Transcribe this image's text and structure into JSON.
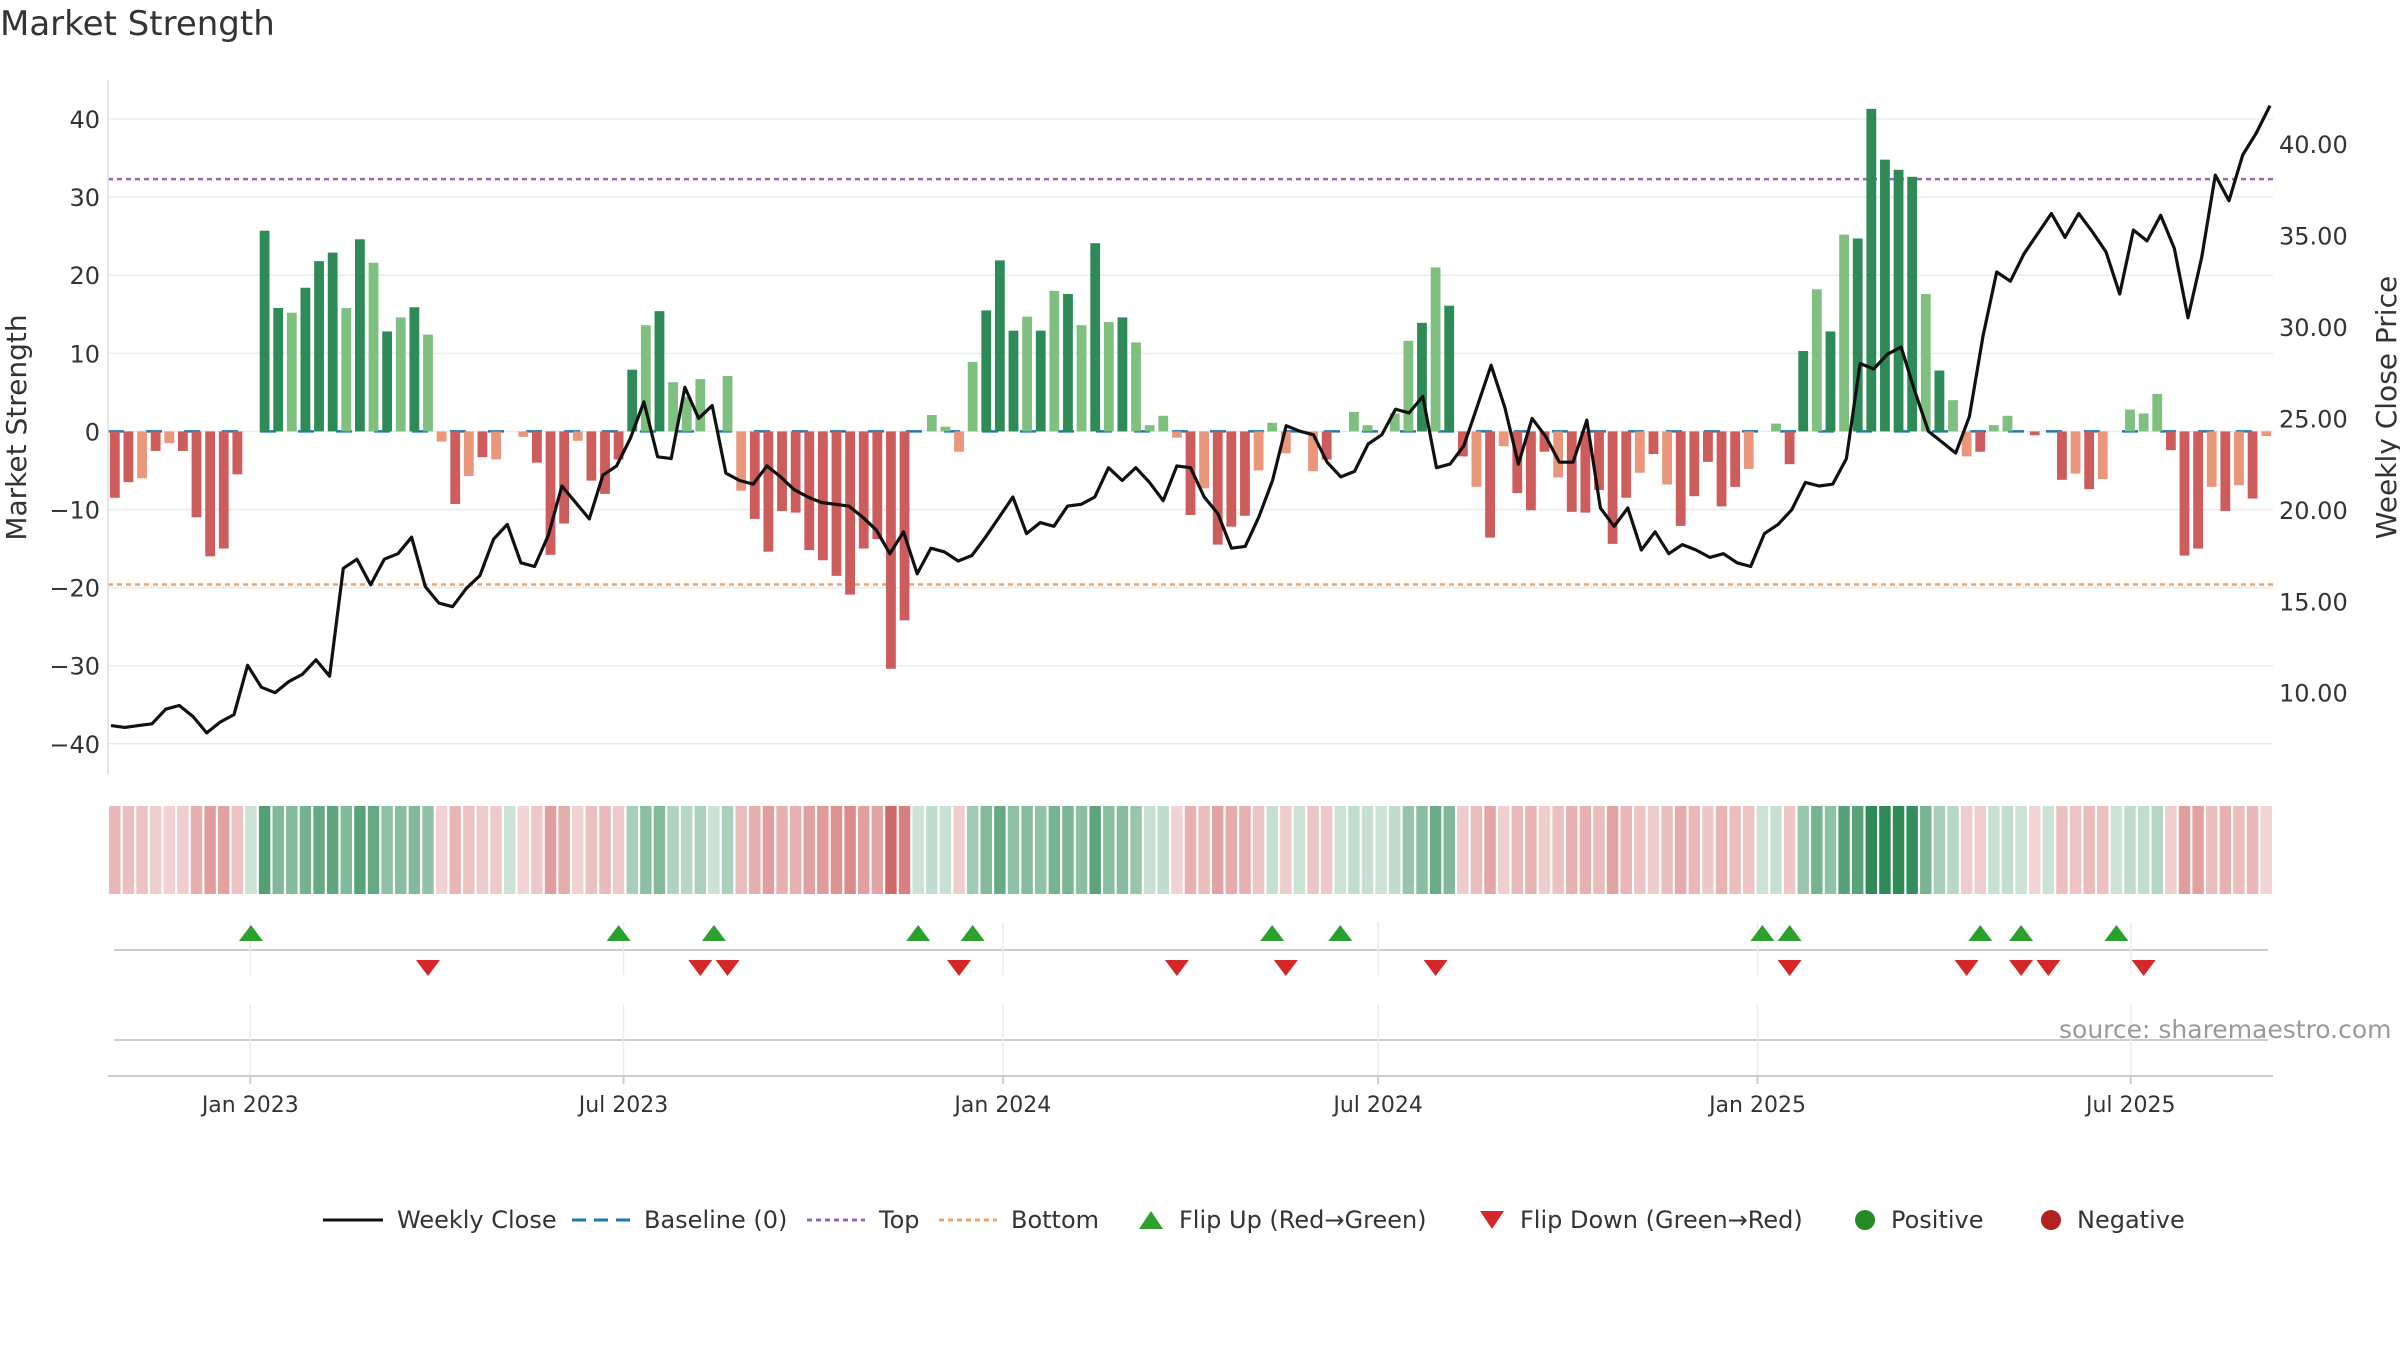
{
  "title": "Market Strength",
  "source": "source: sharemaestro.com",
  "colors": {
    "strong_green": "#2e8b57",
    "light_green": "#7fbf7f",
    "strong_red": "#cd5c5c",
    "light_red": "#e9967a",
    "line": "#111111",
    "top": "#9467bd",
    "bottom": "#f4a261",
    "baseline": "#1f77b4",
    "flip_up": "#2ca02c",
    "flip_down": "#d62728"
  },
  "legend": [
    {
      "key": "weekly_close",
      "label": "Weekly Close"
    },
    {
      "key": "baseline",
      "label": "Baseline (0)"
    },
    {
      "key": "top",
      "label": "Top"
    },
    {
      "key": "bottom",
      "label": "Bottom"
    },
    {
      "key": "flip_up",
      "label": "Flip Up (Red→Green)"
    },
    {
      "key": "flip_down",
      "label": "Flip Down (Green→Red)"
    },
    {
      "key": "positive",
      "label": "Positive"
    },
    {
      "key": "negative",
      "label": "Negative"
    }
  ],
  "chart_data": {
    "type": "bar",
    "title": "Market Strength",
    "ylabel": "Market Strength",
    "ylabel_right": "Weekly Close Price",
    "ylim": [
      -44,
      45
    ],
    "y_ticks": [
      40,
      30,
      20,
      10,
      0,
      -10,
      -20,
      -30,
      -40
    ],
    "y_tick_labels": [
      "40",
      "30",
      "20",
      "10",
      "0",
      "−10",
      "−20",
      "−30",
      "−40"
    ],
    "ylim_right": [
      5.5,
      43.5
    ],
    "y2_ticks": [
      40,
      35,
      30,
      25,
      20,
      15,
      10
    ],
    "y2_tick_labels": [
      "40.00",
      "35.00",
      "30.00",
      "25.00",
      "20.00",
      "15.00",
      "10.00"
    ],
    "top_threshold": 32.3,
    "bottom_threshold": -19.6,
    "x_date_range": [
      "2022-10-24",
      "2025-09-08"
    ],
    "x_ticks": [
      "2023-01-01",
      "2023-07-01",
      "2024-01-01",
      "2024-07-01",
      "2025-01-01",
      "2025-07-01"
    ],
    "x_tick_labels": [
      "Jan 2023",
      "Jul 2023",
      "Jan 2024",
      "Jul 2024",
      "Jan 2025",
      "Jul 2025"
    ],
    "strength_values": [
      -8.5,
      -6.5,
      -6,
      -2.5,
      -1.5,
      -2.5,
      -11,
      -16,
      -15,
      -5.5,
      0,
      25.7,
      15.8,
      15.2,
      18.4,
      21.8,
      22.9,
      15.8,
      24.6,
      21.6,
      12.8,
      14.6,
      15.9,
      12.4,
      -1.3,
      -9.3,
      -5.7,
      -3.3,
      -3.6,
      0,
      -0.7,
      -4,
      -15.8,
      -11.8,
      -1.2,
      -6.3,
      -8,
      -3.6,
      7.9,
      13.6,
      15.4,
      6.3,
      4.4,
      6.7,
      0,
      7.1,
      -7.6,
      -11.2,
      -15.4,
      -10.2,
      -10.4,
      -15.2,
      -16.5,
      -18.5,
      -20.9,
      -15,
      -13.8,
      -30.4,
      -24.2,
      0,
      2.1,
      0.6,
      -2.6,
      8.9,
      15.5,
      21.9,
      12.9,
      14.7,
      12.9,
      18,
      17.6,
      13.6,
      24.1,
      14,
      14.6,
      11.4,
      0.8,
      2,
      -0.8,
      -10.7,
      -7.3,
      -14.5,
      -12.2,
      -10.8,
      -5,
      1.1,
      -2.8,
      0,
      -5.1,
      -3.6,
      0,
      2.5,
      0.8,
      0,
      2.3,
      11.6,
      13.9,
      21,
      16.1,
      -3.2,
      -7.1,
      -13.6,
      -1.9,
      -7.9,
      -10.1,
      -2.6,
      -5.9,
      -10.3,
      -10.4,
      -7.5,
      -14.4,
      -8.5,
      -5.3,
      -2.9,
      -6.8,
      -12.1,
      -8.3,
      -3.9,
      -9.6,
      -7.1,
      -4.8,
      0,
      1,
      -4.2,
      10.3,
      18.2,
      12.8,
      25.2,
      24.7,
      41.3,
      34.8,
      33.5,
      32.6,
      17.6,
      7.8,
      4,
      -3.2,
      -2.6,
      0.8,
      2,
      0,
      -0.5,
      0,
      -6.2,
      -5.4,
      -7.4,
      -6.1,
      0,
      2.8,
      2.3,
      4.8,
      -2.4,
      -15.9,
      -15,
      -7.1,
      -10.2,
      -6.9,
      -8.6,
      -0.6
    ],
    "close_values": [
      8.2,
      8.1,
      8.2,
      8.3,
      9.1,
      9.3,
      8.7,
      7.8,
      8.4,
      8.8,
      11.5,
      10.3,
      10.0,
      10.6,
      11.0,
      11.8,
      10.9,
      16.8,
      17.3,
      15.9,
      17.3,
      17.6,
      18.5,
      15.8,
      14.9,
      14.7,
      15.7,
      16.4,
      18.4,
      19.2,
      17.1,
      16.9,
      18.6,
      21.3,
      20.4,
      19.5,
      21.9,
      22.4,
      23.9,
      25.9,
      22.9,
      22.8,
      26.7,
      25.0,
      25.7,
      22.0,
      21.6,
      21.4,
      22.4,
      21.8,
      21.1,
      20.7,
      20.4,
      20.3,
      20.2,
      19.6,
      18.9,
      17.6,
      18.8,
      16.5,
      17.9,
      17.7,
      17.2,
      17.5,
      18.5,
      19.6,
      20.7,
      18.7,
      19.3,
      19.1,
      20.2,
      20.3,
      20.7,
      22.3,
      21.6,
      22.3,
      21.5,
      20.5,
      22.4,
      22.3,
      20.7,
      19.8,
      17.9,
      18.0,
      19.6,
      21.6,
      24.6,
      24.3,
      24.1,
      22.6,
      21.8,
      22.1,
      23.6,
      24.1,
      25.5,
      25.3,
      26.2,
      22.3,
      22.5,
      23.5,
      25.7,
      27.9,
      25.6,
      22.5,
      25.0,
      24.0,
      22.6,
      22.6,
      24.9,
      20.1,
      19.1,
      20.1,
      17.8,
      18.8,
      17.6,
      18.1,
      17.8,
      17.4,
      17.6,
      17.1,
      16.9,
      18.7,
      19.2,
      20.0,
      21.5,
      21.3,
      21.4,
      22.8,
      28.0,
      27.7,
      28.5,
      28.9,
      26.5,
      24.3,
      23.7,
      23.1,
      25.1,
      29.5,
      33.0,
      32.5,
      34.0,
      35.1,
      36.2,
      34.9,
      36.2,
      35.2,
      34.1,
      31.8,
      35.3,
      34.7,
      36.1,
      34.3,
      30.5,
      33.8,
      38.3,
      36.9,
      39.4,
      40.6,
      42.1
    ]
  },
  "flip_up_indices": [
    10,
    37,
    44,
    59,
    63,
    85,
    90,
    121,
    123,
    137,
    140,
    147
  ],
  "flip_down_indices": [
    23,
    43,
    45,
    62,
    78,
    86,
    97,
    123,
    136,
    140,
    142,
    149
  ]
}
